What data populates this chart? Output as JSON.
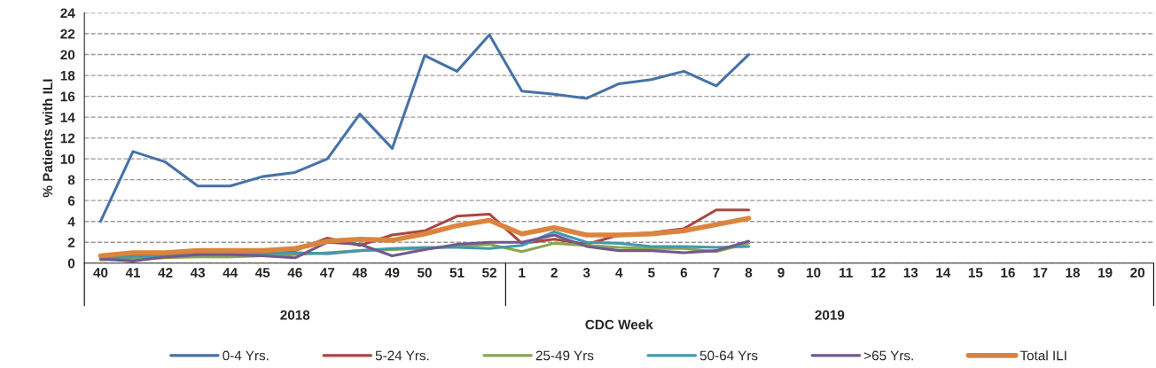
{
  "chart_data": {
    "type": "line",
    "xlabel": "CDC Week",
    "ylabel": "% Patients with ILI",
    "categories": [
      "40",
      "41",
      "42",
      "43",
      "44",
      "45",
      "46",
      "47",
      "48",
      "49",
      "50",
      "51",
      "52",
      "1",
      "2",
      "3",
      "4",
      "5",
      "6",
      "7",
      "8",
      "9",
      "10",
      "11",
      "12",
      "13",
      "14",
      "15",
      "16",
      "17",
      "18",
      "19",
      "20"
    ],
    "series": [
      {
        "name": "0-4 Yrs.",
        "color": "#4572a7",
        "values": [
          4.0,
          10.7,
          9.7,
          7.4,
          7.4,
          8.3,
          8.7,
          10.0,
          14.3,
          11.0,
          19.9,
          18.4,
          21.9,
          16.5,
          16.2,
          15.8,
          17.2,
          17.6,
          18.4,
          17.0,
          20.0,
          null,
          null,
          null,
          null,
          null,
          null,
          null,
          null,
          null,
          null,
          null,
          null
        ]
      },
      {
        "name": "5-24 Yrs.",
        "color": "#aa4643",
        "values": [
          0.6,
          0.8,
          0.9,
          1.0,
          1.1,
          1.1,
          1.2,
          2.4,
          1.7,
          2.7,
          3.1,
          4.5,
          4.7,
          1.9,
          2.3,
          1.8,
          2.7,
          2.9,
          3.3,
          5.1,
          5.1,
          null,
          null,
          null,
          null,
          null,
          null,
          null,
          null,
          null,
          null,
          null,
          null
        ]
      },
      {
        "name": "25-49 Yrs",
        "color": "#89a54e",
        "values": [
          0.3,
          0.4,
          0.5,
          0.6,
          0.6,
          0.7,
          0.8,
          1.0,
          1.2,
          1.3,
          1.4,
          1.6,
          1.8,
          1.1,
          1.9,
          1.7,
          1.5,
          1.4,
          1.4,
          1.1,
          1.9,
          null,
          null,
          null,
          null,
          null,
          null,
          null,
          null,
          null,
          null,
          null,
          null
        ]
      },
      {
        "name": "50-64 Yrs",
        "color": "#4198af",
        "values": [
          0.5,
          0.6,
          0.7,
          0.8,
          0.9,
          0.9,
          1.0,
          0.9,
          1.2,
          1.4,
          1.5,
          1.5,
          1.4,
          1.7,
          3.0,
          2.0,
          1.9,
          1.6,
          1.6,
          1.5,
          1.6,
          null,
          null,
          null,
          null,
          null,
          null,
          null,
          null,
          null,
          null,
          null,
          null
        ]
      },
      {
        "name": ">65 Yrs.",
        "color": "#71588f",
        "values": [
          0.4,
          0.2,
          0.6,
          0.8,
          0.8,
          0.7,
          0.5,
          2.0,
          1.8,
          0.7,
          1.3,
          1.8,
          2.0,
          2.0,
          2.7,
          1.6,
          1.2,
          1.2,
          1.0,
          1.2,
          2.1,
          null,
          null,
          null,
          null,
          null,
          null,
          null,
          null,
          null,
          null,
          null,
          null
        ]
      },
      {
        "name": "Total ILI",
        "color": "#db843d",
        "values": [
          0.7,
          1.0,
          1.0,
          1.2,
          1.2,
          1.2,
          1.4,
          2.1,
          2.3,
          2.2,
          2.8,
          3.6,
          4.1,
          2.8,
          3.4,
          2.7,
          2.7,
          2.8,
          3.1,
          3.7,
          4.3,
          null,
          null,
          null,
          null,
          null,
          null,
          null,
          null,
          null,
          null,
          null,
          null
        ]
      }
    ],
    "annotations": [
      "2018",
      "2019"
    ],
    "ylim": [
      0,
      24
    ],
    "yticks": [
      0,
      2,
      4,
      6,
      8,
      10,
      12,
      14,
      16,
      18,
      20,
      22,
      24
    ],
    "grid": "y",
    "legend": "bottom",
    "marker": "none",
    "line_style": "solid"
  }
}
